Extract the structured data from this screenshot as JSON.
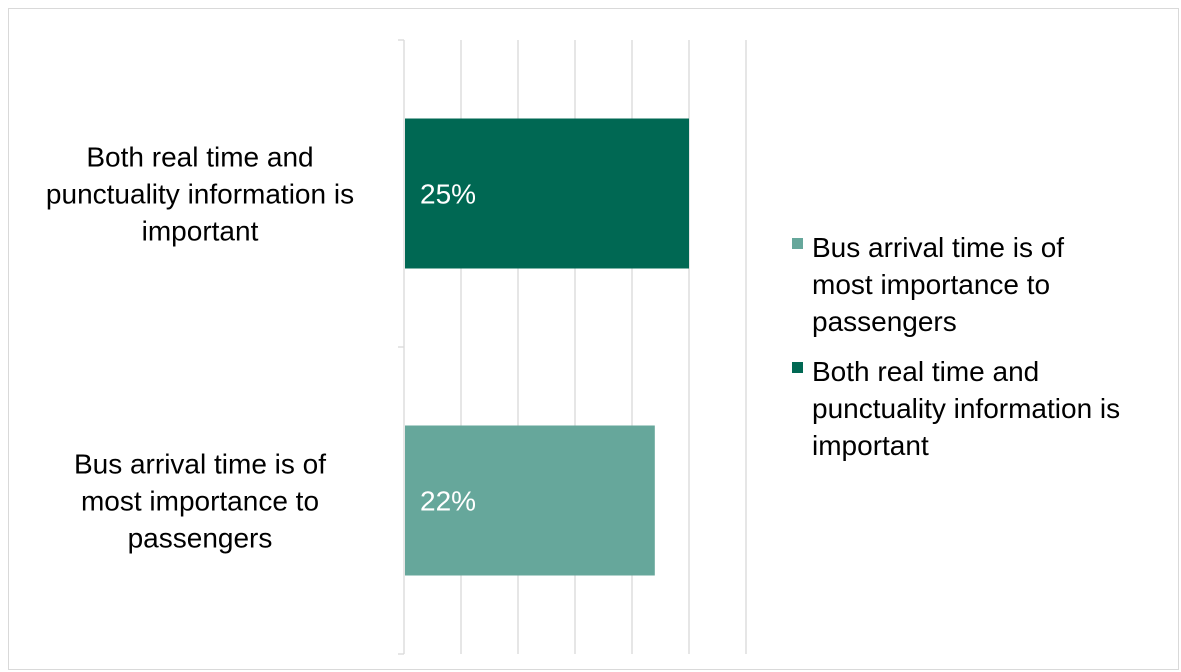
{
  "chart_data": {
    "type": "bar",
    "orientation": "horizontal",
    "categories": [
      [
        "Both real time and",
        "punctuality information is",
        "important"
      ],
      [
        "Bus arrival time is of",
        "most importance to",
        "passengers"
      ]
    ],
    "values": [
      25,
      22
    ],
    "data_labels": [
      "25%",
      "22%"
    ],
    "bar_colors": [
      "#006853",
      "#66a79b"
    ],
    "xlim": [
      0,
      30
    ],
    "grid": true,
    "legend_position": "right",
    "legend": [
      {
        "name": [
          "Bus arrival time is of",
          "most importance to",
          "passengers"
        ],
        "color": "#66a79b"
      },
      {
        "name": [
          "Both real time and",
          "punctuality information is",
          "important"
        ],
        "color": "#006853"
      }
    ]
  }
}
